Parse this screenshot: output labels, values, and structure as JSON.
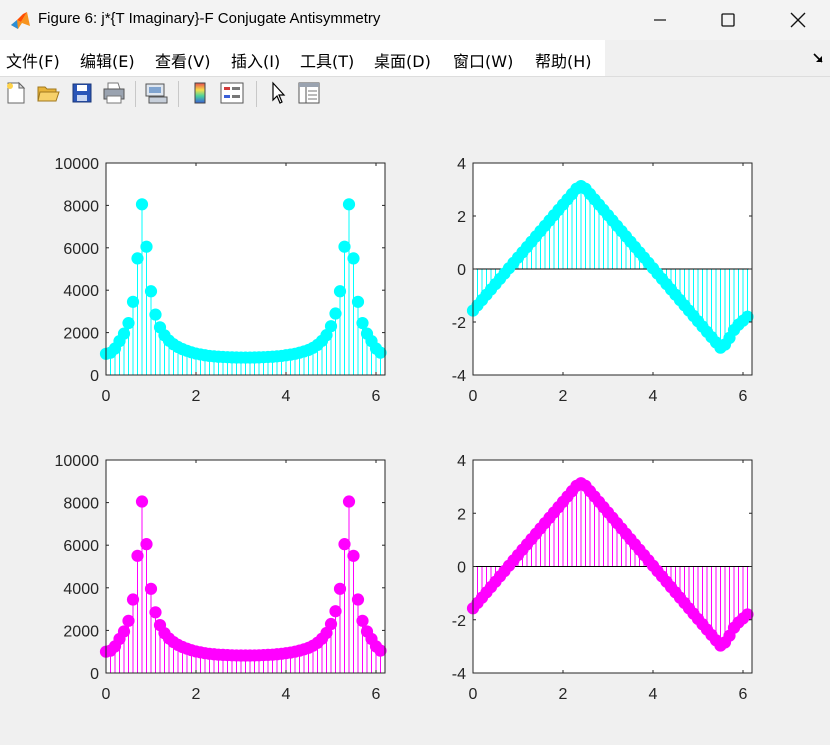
{
  "window": {
    "title": "Figure 6: j*{T Imaginary}-F Conjugate Antisymmetry",
    "controls": [
      "minimize",
      "maximize",
      "close"
    ]
  },
  "menu": {
    "items": [
      "文件(F)",
      "编辑(E)",
      "查看(V)",
      "插入(I)",
      "工具(T)",
      "桌面(D)",
      "窗口(W)",
      "帮助(H)"
    ]
  },
  "toolbar": {
    "buttons": [
      "new-figure-icon",
      "open-file-icon",
      "save-icon",
      "print-icon",
      "link-icon",
      "colorbar-icon",
      "legend-icon",
      "pointer-icon",
      "property-inspector-icon"
    ]
  },
  "colors": {
    "top_row": "#00ffff",
    "bottom_row": "#ff00ff"
  },
  "chart_data": [
    {
      "type": "stem",
      "title": "",
      "xlabel": "",
      "ylabel": "",
      "xlim": [
        0,
        6.2
      ],
      "ylim": [
        0,
        10000
      ],
      "xticks": [
        0,
        2,
        4,
        6
      ],
      "xtick_labels": [
        "0",
        "2",
        "4",
        "6"
      ],
      "yticks": [
        0,
        2000,
        4000,
        6000,
        8000,
        10000
      ],
      "ytick_labels": [
        "0",
        "2000",
        "4000",
        "6000",
        "8000",
        "10000"
      ],
      "color": "#00ffff",
      "x": [
        0,
        0.1,
        0.2,
        0.3,
        0.4,
        0.5,
        0.6,
        0.7,
        0.8,
        0.9,
        1.0,
        1.1,
        1.2,
        1.3,
        1.4,
        1.5,
        1.6,
        1.7,
        1.8,
        1.9,
        2.0,
        2.1,
        2.2,
        2.3,
        2.4,
        2.5,
        2.6,
        2.7,
        2.8,
        2.9,
        3.0,
        3.1,
        3.2,
        3.3,
        3.4,
        3.5,
        3.6,
        3.7,
        3.8,
        3.9,
        4.0,
        4.1,
        4.2,
        4.3,
        4.4,
        4.5,
        4.6,
        4.7,
        4.8,
        4.9,
        5.0,
        5.1,
        5.2,
        5.3,
        5.4,
        5.5,
        5.6,
        5.7,
        5.8,
        5.9,
        6.0,
        6.1
      ],
      "y": [
        1000,
        1050,
        1250,
        1600,
        1950,
        2450,
        3450,
        5500,
        8050,
        6050,
        3950,
        2850,
        2250,
        1870,
        1620,
        1450,
        1320,
        1220,
        1140,
        1070,
        1010,
        970,
        930,
        900,
        880,
        860,
        850,
        840,
        830,
        825,
        820,
        820,
        820,
        825,
        830,
        840,
        850,
        860,
        880,
        900,
        930,
        960,
        1000,
        1050,
        1110,
        1180,
        1280,
        1420,
        1610,
        1880,
        2300,
        2900,
        3950,
        6050,
        8050,
        5500,
        3450,
        2450,
        1950,
        1600,
        1250,
        1050
      ]
    },
    {
      "type": "stem",
      "title": "",
      "xlabel": "",
      "ylabel": "",
      "xlim": [
        0,
        6.2
      ],
      "ylim": [
        -4,
        4
      ],
      "xticks": [
        0,
        2,
        4,
        6
      ],
      "xtick_labels": [
        "0",
        "2",
        "4",
        "6"
      ],
      "yticks": [
        -4,
        -2,
        0,
        2,
        4
      ],
      "ytick_labels": [
        "-4",
        "-2",
        "0",
        "2",
        "4"
      ],
      "color": "#00ffff",
      "x": [
        0,
        0.1,
        0.2,
        0.3,
        0.4,
        0.5,
        0.6,
        0.7,
        0.8,
        0.9,
        1.0,
        1.1,
        1.2,
        1.3,
        1.4,
        1.5,
        1.6,
        1.7,
        1.8,
        1.9,
        2.0,
        2.1,
        2.2,
        2.3,
        2.4,
        2.5,
        2.6,
        2.7,
        2.8,
        2.9,
        3.0,
        3.1,
        3.2,
        3.3,
        3.4,
        3.5,
        3.6,
        3.7,
        3.8,
        3.9,
        4.0,
        4.1,
        4.2,
        4.3,
        4.4,
        4.5,
        4.6,
        4.7,
        4.8,
        4.9,
        5.0,
        5.1,
        5.2,
        5.3,
        5.4,
        5.5,
        5.6,
        5.7,
        5.8,
        5.9,
        6.0,
        6.1
      ],
      "y": [
        -1.57,
        -1.37,
        -1.17,
        -0.97,
        -0.77,
        -0.57,
        -0.37,
        -0.17,
        0.03,
        0.23,
        0.43,
        0.63,
        0.83,
        1.03,
        1.23,
        1.43,
        1.63,
        1.83,
        2.03,
        2.23,
        2.43,
        2.63,
        2.83,
        3.03,
        3.13,
        3.03,
        2.83,
        2.63,
        2.43,
        2.23,
        2.03,
        1.83,
        1.63,
        1.43,
        1.23,
        1.03,
        0.83,
        0.63,
        0.43,
        0.23,
        0.03,
        -0.17,
        -0.37,
        -0.57,
        -0.77,
        -0.97,
        -1.17,
        -1.37,
        -1.57,
        -1.77,
        -1.97,
        -2.17,
        -2.37,
        -2.57,
        -2.77,
        -2.97,
        -2.85,
        -2.6,
        -2.3,
        -2.1,
        -1.95,
        -1.8
      ]
    },
    {
      "type": "stem",
      "title": "",
      "xlabel": "",
      "ylabel": "",
      "xlim": [
        0,
        6.2
      ],
      "ylim": [
        0,
        10000
      ],
      "xticks": [
        0,
        2,
        4,
        6
      ],
      "xtick_labels": [
        "0",
        "2",
        "4",
        "6"
      ],
      "yticks": [
        0,
        2000,
        4000,
        6000,
        8000,
        10000
      ],
      "ytick_labels": [
        "0",
        "2000",
        "4000",
        "6000",
        "8000",
        "10000"
      ],
      "color": "#ff00ff",
      "x": [
        0,
        0.1,
        0.2,
        0.3,
        0.4,
        0.5,
        0.6,
        0.7,
        0.8,
        0.9,
        1.0,
        1.1,
        1.2,
        1.3,
        1.4,
        1.5,
        1.6,
        1.7,
        1.8,
        1.9,
        2.0,
        2.1,
        2.2,
        2.3,
        2.4,
        2.5,
        2.6,
        2.7,
        2.8,
        2.9,
        3.0,
        3.1,
        3.2,
        3.3,
        3.4,
        3.5,
        3.6,
        3.7,
        3.8,
        3.9,
        4.0,
        4.1,
        4.2,
        4.3,
        4.4,
        4.5,
        4.6,
        4.7,
        4.8,
        4.9,
        5.0,
        5.1,
        5.2,
        5.3,
        5.4,
        5.5,
        5.6,
        5.7,
        5.8,
        5.9,
        6.0,
        6.1
      ],
      "y": [
        1000,
        1050,
        1250,
        1600,
        1950,
        2450,
        3450,
        5500,
        8050,
        6050,
        3950,
        2850,
        2250,
        1870,
        1620,
        1450,
        1320,
        1220,
        1140,
        1070,
        1010,
        970,
        930,
        900,
        880,
        860,
        850,
        840,
        830,
        825,
        820,
        820,
        820,
        825,
        830,
        840,
        850,
        860,
        880,
        900,
        930,
        960,
        1000,
        1050,
        1110,
        1180,
        1280,
        1420,
        1610,
        1880,
        2300,
        2900,
        3950,
        6050,
        8050,
        5500,
        3450,
        2450,
        1950,
        1600,
        1250,
        1050
      ]
    },
    {
      "type": "stem",
      "title": "",
      "xlabel": "",
      "ylabel": "",
      "xlim": [
        0,
        6.2
      ],
      "ylim": [
        -4,
        4
      ],
      "xticks": [
        0,
        2,
        4,
        6
      ],
      "xtick_labels": [
        "0",
        "2",
        "4",
        "6"
      ],
      "yticks": [
        -4,
        -2,
        0,
        2,
        4
      ],
      "ytick_labels": [
        "-4",
        "-2",
        "0",
        "2",
        "4"
      ],
      "color": "#ff00ff",
      "x": [
        0,
        0.1,
        0.2,
        0.3,
        0.4,
        0.5,
        0.6,
        0.7,
        0.8,
        0.9,
        1.0,
        1.1,
        1.2,
        1.3,
        1.4,
        1.5,
        1.6,
        1.7,
        1.8,
        1.9,
        2.0,
        2.1,
        2.2,
        2.3,
        2.4,
        2.5,
        2.6,
        2.7,
        2.8,
        2.9,
        3.0,
        3.1,
        3.2,
        3.3,
        3.4,
        3.5,
        3.6,
        3.7,
        3.8,
        3.9,
        4.0,
        4.1,
        4.2,
        4.3,
        4.4,
        4.5,
        4.6,
        4.7,
        4.8,
        4.9,
        5.0,
        5.1,
        5.2,
        5.3,
        5.4,
        5.5,
        5.6,
        5.7,
        5.8,
        5.9,
        6.0,
        6.1
      ],
      "y": [
        -1.57,
        -1.37,
        -1.17,
        -0.97,
        -0.77,
        -0.57,
        -0.37,
        -0.17,
        0.03,
        0.23,
        0.43,
        0.63,
        0.83,
        1.03,
        1.23,
        1.43,
        1.63,
        1.83,
        2.03,
        2.23,
        2.43,
        2.63,
        2.83,
        3.03,
        3.13,
        3.03,
        2.83,
        2.63,
        2.43,
        2.23,
        2.03,
        1.83,
        1.63,
        1.43,
        1.23,
        1.03,
        0.83,
        0.63,
        0.43,
        0.23,
        0.03,
        -0.17,
        -0.37,
        -0.57,
        -0.77,
        -0.97,
        -1.17,
        -1.37,
        -1.57,
        -1.77,
        -1.97,
        -2.17,
        -2.37,
        -2.57,
        -2.77,
        -2.97,
        -2.85,
        -2.6,
        -2.3,
        -2.1,
        -1.95,
        -1.8
      ]
    }
  ]
}
